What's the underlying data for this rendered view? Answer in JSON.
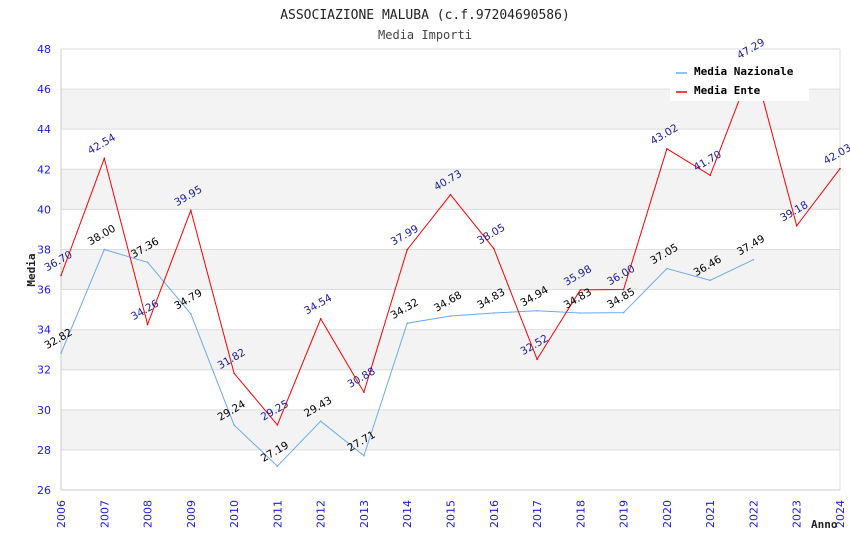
{
  "chart_data": {
    "type": "line",
    "title": "ASSOCIAZIONE MALUBA (c.f.97204690586)",
    "subtitle": "Media Importi",
    "xlabel": "Anno",
    "ylabel": "Media",
    "ylim": [
      26,
      48
    ],
    "yticks": [
      "26",
      "28",
      "30",
      "32",
      "34",
      "36",
      "38",
      "40",
      "42",
      "44",
      "46",
      "48"
    ],
    "x": [
      "2006",
      "2007",
      "2008",
      "2009",
      "2010",
      "2011",
      "2012",
      "2013",
      "2014",
      "2015",
      "2016",
      "2017",
      "2018",
      "2019",
      "2020",
      "2021",
      "2022",
      "2023",
      "2024"
    ],
    "grid": true,
    "legend_position": "top-right",
    "series": [
      {
        "name": "Media Nazionale",
        "color": "#6aaaf0",
        "label_color": "#000000",
        "values": [
          32.82,
          38.0,
          37.36,
          34.79,
          29.24,
          27.19,
          29.43,
          27.71,
          34.32,
          34.68,
          34.83,
          34.94,
          34.83,
          34.85,
          37.05,
          36.46,
          37.49,
          null,
          null
        ],
        "labels": [
          "32.82",
          "38.00",
          "37.36",
          "34.79",
          "29.24",
          "27.19",
          "29.43",
          "27.71",
          "34.32",
          "34.68",
          "34.83",
          "34.94",
          "34.83",
          "34.85",
          "37.05",
          "36.46",
          "37.49",
          null,
          null
        ]
      },
      {
        "name": "Media Ente",
        "color": "#ff0000",
        "label_color": "#1a1a99",
        "values": [
          36.7,
          42.54,
          34.26,
          39.95,
          31.82,
          29.25,
          34.54,
          30.88,
          37.99,
          40.73,
          38.05,
          32.52,
          35.98,
          36.0,
          43.02,
          41.7,
          47.29,
          39.18,
          42.03
        ],
        "labels": [
          "36.70",
          "42.54",
          "34.26",
          "39.95",
          "31.82",
          "29.25",
          "34.54",
          "30.88",
          "37.99",
          "40.73",
          "38.05",
          "32.52",
          "35.98",
          "36.00",
          "43.02",
          "41.70",
          "47.29",
          "39.18",
          "42.03"
        ]
      }
    ]
  }
}
